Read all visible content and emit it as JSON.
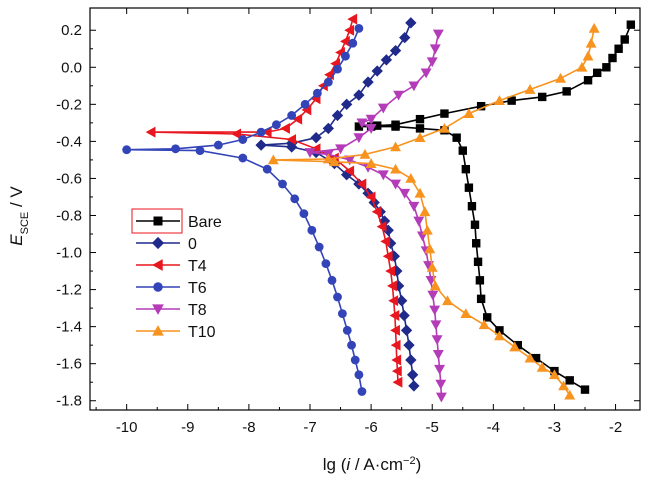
{
  "chart_data": {
    "type": "line",
    "xlabel": "lg (i / A·cm⁻²)",
    "xlabel_parts": {
      "prefix": "lg (",
      "italic": "i",
      "mid": " / A·cm",
      "sup": "−2",
      "suffix": ")"
    },
    "ylabel": "E_SCE / V",
    "ylabel_parts": {
      "italic": "E",
      "sub": "SCE",
      "suffix": " / V"
    },
    "xlim": [
      -10.6,
      -1.6
    ],
    "ylim": [
      -1.85,
      0.32
    ],
    "xticks": [
      -10,
      -9,
      -8,
      -7,
      -6,
      -5,
      -4,
      -3,
      -2
    ],
    "yticks": [
      0.2,
      0.0,
      -0.2,
      -0.4,
      -0.6,
      -0.8,
      -1.0,
      -1.2,
      -1.4,
      -1.6,
      -1.8
    ],
    "xtick_labels": [
      "-10",
      "-9",
      "-8",
      "-7",
      "-6",
      "-5",
      "-4",
      "-3",
      "-2"
    ],
    "ytick_labels": [
      "0.2",
      "0.0",
      "-0.2",
      "-0.4",
      "-0.6",
      "-0.8",
      "-1.0",
      "-1.2",
      "-1.4",
      "-1.6",
      "-1.8"
    ],
    "legend_position": "lower-left",
    "grid": false,
    "series": [
      {
        "name": "Bare",
        "color": "#000000",
        "marker": "square",
        "points": [
          [
            -1.75,
            0.23
          ],
          [
            -1.85,
            0.15
          ],
          [
            -1.95,
            0.1
          ],
          [
            -2.05,
            0.05
          ],
          [
            -2.15,
            0.0
          ],
          [
            -2.3,
            -0.03
          ],
          [
            -2.45,
            -0.07
          ],
          [
            -2.8,
            -0.13
          ],
          [
            -3.2,
            -0.16
          ],
          [
            -3.7,
            -0.18
          ],
          [
            -4.2,
            -0.21
          ],
          [
            -4.8,
            -0.25
          ],
          [
            -5.2,
            -0.28
          ],
          [
            -5.6,
            -0.31
          ],
          [
            -5.9,
            -0.315
          ],
          [
            -6.2,
            -0.32
          ],
          [
            -6.0,
            -0.32
          ],
          [
            -5.6,
            -0.32
          ],
          [
            -5.2,
            -0.33
          ],
          [
            -4.8,
            -0.34
          ],
          [
            -4.6,
            -0.38
          ],
          [
            -4.5,
            -0.45
          ],
          [
            -4.45,
            -0.55
          ],
          [
            -4.4,
            -0.65
          ],
          [
            -4.35,
            -0.75
          ],
          [
            -4.3,
            -0.85
          ],
          [
            -4.28,
            -0.95
          ],
          [
            -4.25,
            -1.05
          ],
          [
            -4.22,
            -1.15
          ],
          [
            -4.2,
            -1.25
          ],
          [
            -4.1,
            -1.35
          ],
          [
            -3.9,
            -1.42
          ],
          [
            -3.6,
            -1.5
          ],
          [
            -3.3,
            -1.57
          ],
          [
            -3.0,
            -1.64
          ],
          [
            -2.75,
            -1.69
          ],
          [
            -2.5,
            -1.74
          ]
        ]
      },
      {
        "name": "0",
        "color": "#1f2a8a",
        "marker": "diamond",
        "points": [
          [
            -5.35,
            0.24
          ],
          [
            -5.45,
            0.16
          ],
          [
            -5.6,
            0.09
          ],
          [
            -5.75,
            0.04
          ],
          [
            -5.9,
            -0.02
          ],
          [
            -6.05,
            -0.08
          ],
          [
            -6.2,
            -0.15
          ],
          [
            -6.4,
            -0.2
          ],
          [
            -6.55,
            -0.26
          ],
          [
            -6.7,
            -0.33
          ],
          [
            -6.9,
            -0.38
          ],
          [
            -7.3,
            -0.41
          ],
          [
            -7.8,
            -0.42
          ],
          [
            -7.3,
            -0.43
          ],
          [
            -6.9,
            -0.46
          ],
          [
            -6.6,
            -0.52
          ],
          [
            -6.4,
            -0.58
          ],
          [
            -6.2,
            -0.63
          ],
          [
            -6.05,
            -0.68
          ],
          [
            -5.95,
            -0.73
          ],
          [
            -5.85,
            -0.78
          ],
          [
            -5.78,
            -0.83
          ],
          [
            -5.72,
            -0.88
          ],
          [
            -5.68,
            -0.95
          ],
          [
            -5.62,
            -1.02
          ],
          [
            -5.58,
            -1.1
          ],
          [
            -5.55,
            -1.18
          ],
          [
            -5.5,
            -1.26
          ],
          [
            -5.46,
            -1.34
          ],
          [
            -5.42,
            -1.42
          ],
          [
            -5.38,
            -1.5
          ],
          [
            -5.35,
            -1.58
          ],
          [
            -5.32,
            -1.66
          ],
          [
            -5.3,
            -1.72
          ]
        ]
      },
      {
        "name": "T4",
        "color": "#e8161e",
        "marker": "triangle-left",
        "points": [
          [
            -6.3,
            0.26
          ],
          [
            -6.35,
            0.2
          ],
          [
            -6.42,
            0.14
          ],
          [
            -6.5,
            0.08
          ],
          [
            -6.58,
            0.02
          ],
          [
            -6.68,
            -0.04
          ],
          [
            -6.78,
            -0.1
          ],
          [
            -6.9,
            -0.17
          ],
          [
            -7.05,
            -0.23
          ],
          [
            -7.2,
            -0.28
          ],
          [
            -7.4,
            -0.33
          ],
          [
            -7.7,
            -0.35
          ],
          [
            -9.6,
            -0.35
          ],
          [
            -8.2,
            -0.36
          ],
          [
            -7.3,
            -0.39
          ],
          [
            -6.9,
            -0.44
          ],
          [
            -6.6,
            -0.49
          ],
          [
            -6.35,
            -0.56
          ],
          [
            -6.15,
            -0.63
          ],
          [
            -6.0,
            -0.7
          ],
          [
            -5.9,
            -0.78
          ],
          [
            -5.82,
            -0.86
          ],
          [
            -5.76,
            -0.94
          ],
          [
            -5.72,
            -1.02
          ],
          [
            -5.68,
            -1.1
          ],
          [
            -5.65,
            -1.18
          ],
          [
            -5.63,
            -1.26
          ],
          [
            -5.61,
            -1.34
          ],
          [
            -5.6,
            -1.42
          ],
          [
            -5.59,
            -1.5
          ],
          [
            -5.58,
            -1.58
          ],
          [
            -5.57,
            -1.64
          ],
          [
            -5.56,
            -1.7
          ]
        ]
      },
      {
        "name": "T6",
        "color": "#3344b8",
        "marker": "circle",
        "points": [
          [
            -6.2,
            0.21
          ],
          [
            -6.3,
            0.13
          ],
          [
            -6.42,
            0.06
          ],
          [
            -6.55,
            -0.01
          ],
          [
            -6.7,
            -0.08
          ],
          [
            -6.88,
            -0.14
          ],
          [
            -7.08,
            -0.2
          ],
          [
            -7.3,
            -0.26
          ],
          [
            -7.55,
            -0.31
          ],
          [
            -7.8,
            -0.35
          ],
          [
            -8.1,
            -0.39
          ],
          [
            -8.5,
            -0.42
          ],
          [
            -9.2,
            -0.44
          ],
          [
            -10.0,
            -0.445
          ],
          [
            -8.8,
            -0.45
          ],
          [
            -8.1,
            -0.49
          ],
          [
            -7.7,
            -0.55
          ],
          [
            -7.45,
            -0.63
          ],
          [
            -7.25,
            -0.71
          ],
          [
            -7.1,
            -0.79
          ],
          [
            -6.97,
            -0.88
          ],
          [
            -6.85,
            -0.97
          ],
          [
            -6.74,
            -1.06
          ],
          [
            -6.64,
            -1.15
          ],
          [
            -6.55,
            -1.24
          ],
          [
            -6.47,
            -1.33
          ],
          [
            -6.39,
            -1.42
          ],
          [
            -6.32,
            -1.5
          ],
          [
            -6.26,
            -1.58
          ],
          [
            -6.2,
            -1.66
          ],
          [
            -6.15,
            -1.75
          ]
        ]
      },
      {
        "name": "T8",
        "color": "#b43cb8",
        "marker": "triangle-down",
        "points": [
          [
            -4.9,
            0.18
          ],
          [
            -4.95,
            0.1
          ],
          [
            -5.0,
            0.03
          ],
          [
            -5.1,
            -0.03
          ],
          [
            -5.3,
            -0.1
          ],
          [
            -5.55,
            -0.15
          ],
          [
            -5.8,
            -0.22
          ],
          [
            -6.0,
            -0.28
          ],
          [
            -6.15,
            -0.3
          ],
          [
            -6.0,
            -0.33
          ],
          [
            -6.2,
            -0.38
          ],
          [
            -6.5,
            -0.44
          ],
          [
            -7.0,
            -0.46
          ],
          [
            -6.7,
            -0.47
          ],
          [
            -6.35,
            -0.5
          ],
          [
            -6.05,
            -0.54
          ],
          [
            -5.8,
            -0.58
          ],
          [
            -5.6,
            -0.63
          ],
          [
            -5.45,
            -0.68
          ],
          [
            -5.3,
            -0.75
          ],
          [
            -5.22,
            -0.83
          ],
          [
            -5.16,
            -0.91
          ],
          [
            -5.1,
            -0.99
          ],
          [
            -5.06,
            -1.07
          ],
          [
            -5.02,
            -1.15
          ],
          [
            -4.99,
            -1.23
          ],
          [
            -4.96,
            -1.31
          ],
          [
            -4.94,
            -1.39
          ],
          [
            -4.92,
            -1.47
          ],
          [
            -4.9,
            -1.55
          ],
          [
            -4.88,
            -1.63
          ],
          [
            -4.86,
            -1.71
          ],
          [
            -4.85,
            -1.78
          ]
        ]
      },
      {
        "name": "T10",
        "color": "#f7931e",
        "marker": "triangle-up",
        "points": [
          [
            -2.35,
            0.21
          ],
          [
            -2.4,
            0.13
          ],
          [
            -2.45,
            0.06
          ],
          [
            -2.55,
            0.0
          ],
          [
            -2.9,
            -0.06
          ],
          [
            -3.4,
            -0.12
          ],
          [
            -3.9,
            -0.18
          ],
          [
            -4.4,
            -0.25
          ],
          [
            -4.8,
            -0.33
          ],
          [
            -5.2,
            -0.38
          ],
          [
            -5.6,
            -0.43
          ],
          [
            -6.1,
            -0.47
          ],
          [
            -6.7,
            -0.495
          ],
          [
            -7.6,
            -0.5
          ],
          [
            -6.6,
            -0.51
          ],
          [
            -6.0,
            -0.52
          ],
          [
            -5.6,
            -0.55
          ],
          [
            -5.35,
            -0.6
          ],
          [
            -5.2,
            -0.68
          ],
          [
            -5.12,
            -0.78
          ],
          [
            -5.08,
            -0.88
          ],
          [
            -5.04,
            -0.98
          ],
          [
            -5.0,
            -1.08
          ],
          [
            -4.95,
            -1.18
          ],
          [
            -4.75,
            -1.26
          ],
          [
            -4.45,
            -1.33
          ],
          [
            -4.15,
            -1.39
          ],
          [
            -3.9,
            -1.45
          ],
          [
            -3.65,
            -1.51
          ],
          [
            -3.4,
            -1.57
          ],
          [
            -3.2,
            -1.62
          ],
          [
            -3.0,
            -1.66
          ],
          [
            -2.85,
            -1.72
          ],
          [
            -2.75,
            -1.77
          ]
        ]
      }
    ]
  }
}
